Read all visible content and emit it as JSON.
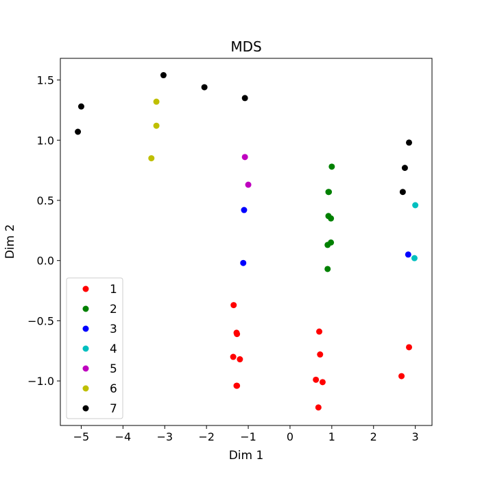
{
  "chart_data": {
    "type": "scatter",
    "title": "MDS",
    "xlabel": "Dim 1",
    "ylabel": "Dim 2",
    "xlim": [
      -5.5,
      3.4
    ],
    "ylim": [
      -1.37,
      1.68
    ],
    "xticks": [
      -5,
      -4,
      -3,
      -2,
      -1,
      0,
      1,
      2,
      3
    ],
    "yticks": [
      -1.0,
      -0.5,
      0.0,
      0.5,
      1.0,
      1.5
    ],
    "xtick_labels": [
      "−5",
      "−4",
      "−3",
      "−2",
      "−1",
      "0",
      "1",
      "2",
      "3"
    ],
    "ytick_labels": [
      "−1.0",
      "−0.5",
      "0.0",
      "0.5",
      "1.0",
      "1.5"
    ],
    "grid": false,
    "legend_position": "lower-left",
    "series": [
      {
        "name": "1",
        "color": "#ff0000",
        "points": [
          [
            -1.35,
            -0.37
          ],
          [
            -1.28,
            -0.6
          ],
          [
            -1.27,
            -0.61
          ],
          [
            -1.36,
            -0.8
          ],
          [
            -1.2,
            -0.82
          ],
          [
            -1.28,
            -1.04
          ],
          [
            -1.27,
            -1.04
          ],
          [
            0.7,
            -0.59
          ],
          [
            0.72,
            -0.78
          ],
          [
            0.62,
            -0.99
          ],
          [
            0.78,
            -1.01
          ],
          [
            0.68,
            -1.22
          ],
          [
            2.85,
            -0.72
          ],
          [
            2.67,
            -0.96
          ]
        ]
      },
      {
        "name": "2",
        "color": "#008000",
        "points": [
          [
            1.0,
            0.78
          ],
          [
            0.92,
            0.57
          ],
          [
            0.93,
            0.57
          ],
          [
            0.92,
            0.37
          ],
          [
            0.98,
            0.35
          ],
          [
            0.98,
            0.15
          ],
          [
            0.9,
            0.13
          ],
          [
            0.9,
            -0.07
          ]
        ]
      },
      {
        "name": "3",
        "color": "#0000ff",
        "points": [
          [
            -1.1,
            0.42
          ],
          [
            -1.12,
            -0.02
          ],
          [
            2.83,
            0.05
          ]
        ]
      },
      {
        "name": "4",
        "color": "#00bfbf",
        "points": [
          [
            3.0,
            0.46
          ],
          [
            2.98,
            0.02
          ]
        ]
      },
      {
        "name": "5",
        "color": "#bf00bf",
        "points": [
          [
            -1.08,
            0.86
          ],
          [
            -1.0,
            0.63
          ]
        ]
      },
      {
        "name": "6",
        "color": "#bfbf00",
        "points": [
          [
            -3.2,
            1.32
          ],
          [
            -3.2,
            1.12
          ],
          [
            -3.32,
            0.85
          ]
        ]
      },
      {
        "name": "7",
        "color": "#000000",
        "points": [
          [
            -5.0,
            1.28
          ],
          [
            -5.08,
            1.07
          ],
          [
            -3.03,
            1.54
          ],
          [
            -2.05,
            1.44
          ],
          [
            -1.08,
            1.35
          ],
          [
            2.85,
            0.98
          ],
          [
            2.75,
            0.77
          ],
          [
            2.7,
            0.57
          ]
        ]
      }
    ]
  }
}
